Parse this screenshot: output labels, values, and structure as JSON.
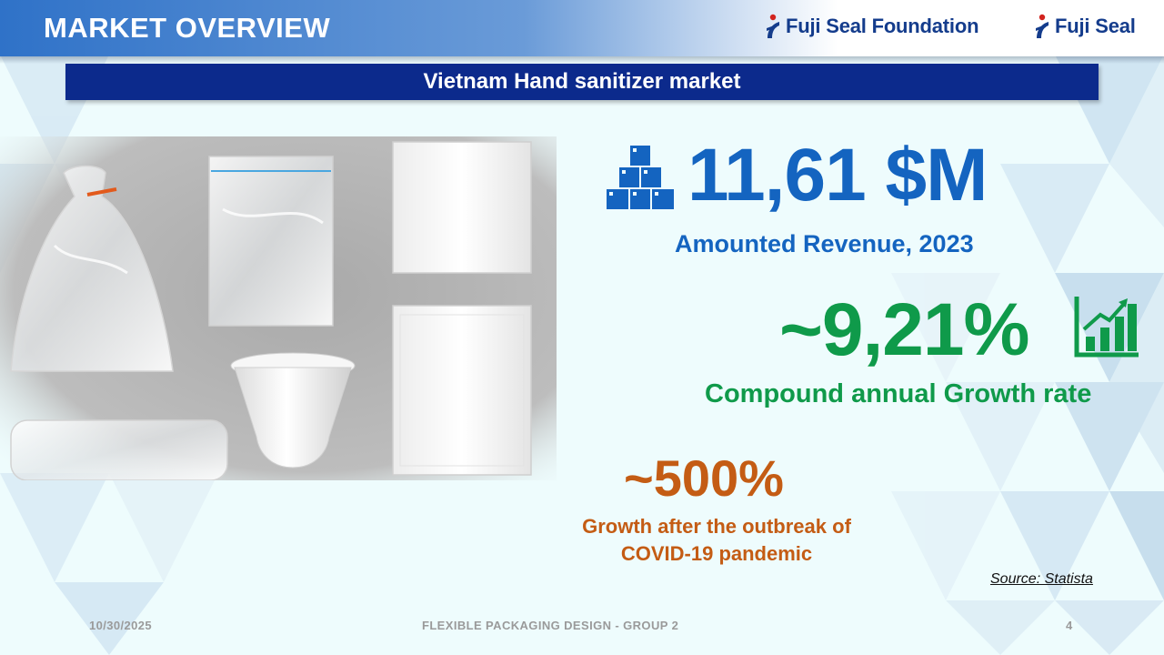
{
  "header": {
    "title": "MARKET OVERVIEW",
    "logos": [
      {
        "name": "Fuji Seal Foundation",
        "icon": "fuji-seal-mark-icon"
      },
      {
        "name": "Fuji Seal",
        "icon": "fuji-seal-mark-icon"
      }
    ]
  },
  "banner": {
    "text": "Vietnam Hand sanitizer market"
  },
  "stats": {
    "revenue": {
      "value": "11,61 $M",
      "label": "Amounted Revenue, 2023",
      "icon": "boxes-stack-icon",
      "color": "#1464c0"
    },
    "cagr": {
      "value": "~9,21%",
      "label": "Compound annual Growth rate",
      "icon": "bar-growth-chart-icon",
      "color": "#0f9a4a"
    },
    "covid": {
      "value": "~500%",
      "label_line1": "Growth after the outbreak of",
      "label_line2": "COVID-19 pandemic",
      "color": "#c45c14"
    }
  },
  "source": "Source: Statista",
  "footer": {
    "date": "10/30/2025",
    "center": "FLEXIBLE PACKAGING DESIGN - GROUP 2",
    "page": "4"
  }
}
